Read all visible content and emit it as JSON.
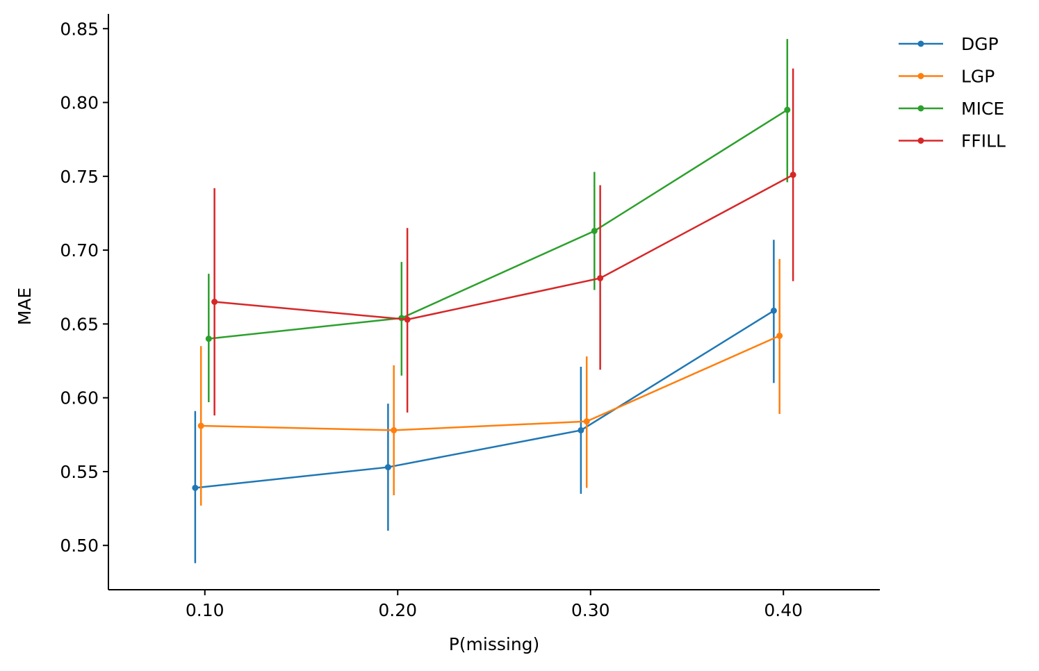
{
  "chart_data": {
    "type": "line",
    "title": "",
    "xlabel": "P(missing)",
    "ylabel": "MAE",
    "xlim": [
      0.05,
      0.45
    ],
    "ylim": [
      0.47,
      0.86
    ],
    "xticks": [
      0.1,
      0.2,
      0.3,
      0.4
    ],
    "xtick_labels": [
      "0.10",
      "0.20",
      "0.30",
      "0.40"
    ],
    "yticks": [
      0.5,
      0.55,
      0.6,
      0.65,
      0.7,
      0.75,
      0.8,
      0.85
    ],
    "ytick_labels": [
      "0.50",
      "0.55",
      "0.60",
      "0.65",
      "0.70",
      "0.75",
      "0.80",
      "0.85"
    ],
    "grid": false,
    "legend_position": "top-right",
    "series": [
      {
        "name": "DGP",
        "color": "#1f77b4",
        "x": [
          0.095,
          0.195,
          0.295,
          0.395
        ],
        "values": [
          0.539,
          0.553,
          0.578,
          0.659
        ],
        "err_low": [
          0.488,
          0.51,
          0.535,
          0.61
        ],
        "err_high": [
          0.591,
          0.596,
          0.621,
          0.707
        ]
      },
      {
        "name": "LGP",
        "color": "#ff7f0e",
        "x": [
          0.098,
          0.198,
          0.298,
          0.398
        ],
        "values": [
          0.581,
          0.578,
          0.584,
          0.642
        ],
        "err_low": [
          0.527,
          0.534,
          0.539,
          0.589
        ],
        "err_high": [
          0.635,
          0.622,
          0.628,
          0.694
        ]
      },
      {
        "name": "MICE",
        "color": "#2ca02c",
        "x": [
          0.102,
          0.202,
          0.302,
          0.402
        ],
        "values": [
          0.64,
          0.654,
          0.713,
          0.795
        ],
        "err_low": [
          0.597,
          0.615,
          0.673,
          0.746
        ],
        "err_high": [
          0.684,
          0.692,
          0.753,
          0.843
        ]
      },
      {
        "name": "FFILL",
        "color": "#d62728",
        "x": [
          0.105,
          0.205,
          0.305,
          0.405
        ],
        "values": [
          0.665,
          0.653,
          0.681,
          0.751
        ],
        "err_low": [
          0.588,
          0.59,
          0.619,
          0.679
        ],
        "err_high": [
          0.742,
          0.715,
          0.744,
          0.823
        ]
      }
    ]
  }
}
